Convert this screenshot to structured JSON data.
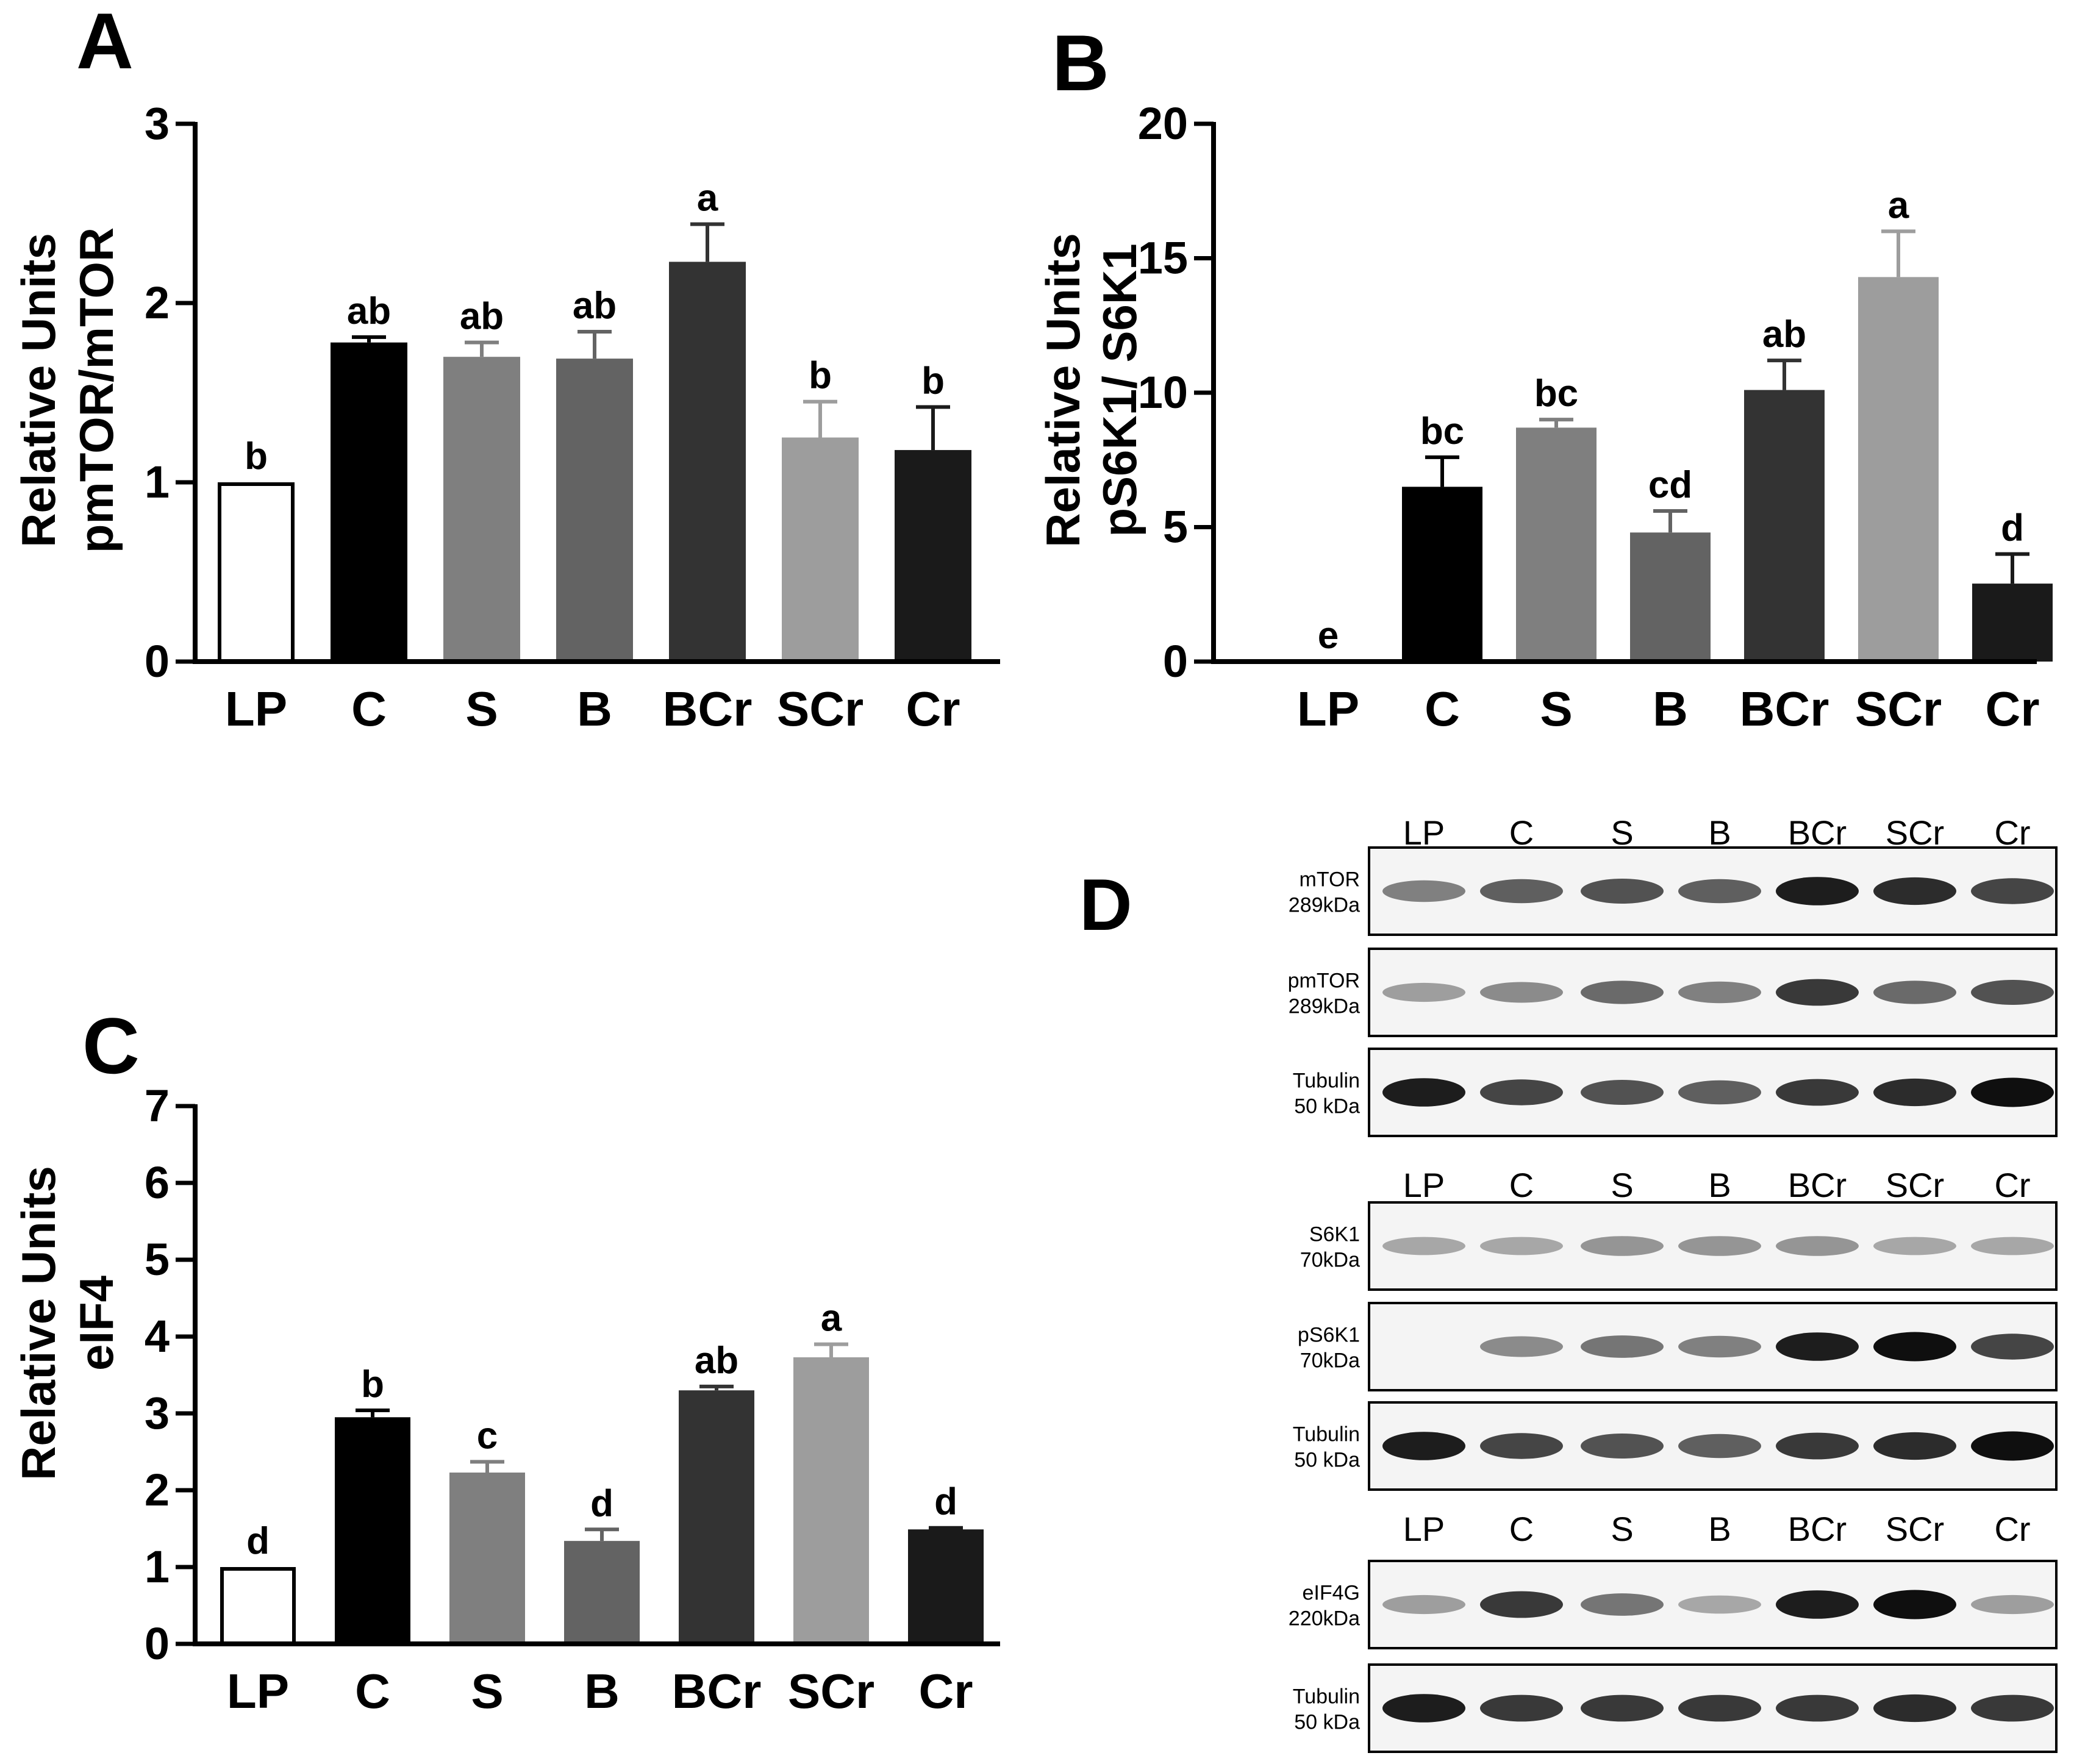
{
  "panel_letters": [
    "A",
    "B",
    "C",
    "D"
  ],
  "chart_data": [
    {
      "panel": "A",
      "type": "bar",
      "ylabel_line1": "Relative Units",
      "ylabel_line2": "pmTOR/mTOR",
      "categories": [
        "LP",
        "C",
        "S",
        "B",
        "BCr",
        "SCr",
        "Cr"
      ],
      "values": [
        1.0,
        1.78,
        1.7,
        1.69,
        2.23,
        1.25,
        1.18
      ],
      "errors": [
        0,
        0.03,
        0.08,
        0.15,
        0.21,
        0.2,
        0.24
      ],
      "sig_letters": [
        "b",
        "ab",
        "ab",
        "ab",
        "a",
        "b",
        "b"
      ],
      "ylim": [
        0,
        3
      ],
      "yticks": [
        0,
        1,
        2,
        3
      ],
      "ytick_labels": [
        "0",
        "1",
        "2",
        "3"
      ],
      "colors": [
        "#ffffff",
        "#000000",
        "#7f7f7f",
        "#636363",
        "#333333",
        "#9d9d9d",
        "#1a1a1a"
      ]
    },
    {
      "panel": "B",
      "type": "bar",
      "ylabel_line1": "Relative Units",
      "ylabel_line2": "pS6K1/ S6K1",
      "categories": [
        "LP",
        "C",
        "S",
        "B",
        "BCr",
        "SCr",
        "Cr"
      ],
      "values": [
        0.0,
        6.5,
        8.7,
        4.8,
        10.1,
        14.3,
        2.9
      ],
      "errors": [
        0,
        1.1,
        0.3,
        0.8,
        1.1,
        1.7,
        1.1
      ],
      "sig_letters": [
        "e",
        "bc",
        "bc",
        "cd",
        "ab",
        "a",
        "d"
      ],
      "ylim": [
        0,
        20
      ],
      "yticks": [
        0,
        5,
        10,
        15,
        20
      ],
      "ytick_labels": [
        "0",
        "5",
        "10",
        "15",
        "20"
      ],
      "colors": [
        "#ffffff",
        "#000000",
        "#7f7f7f",
        "#636363",
        "#333333",
        "#9d9d9d",
        "#1a1a1a"
      ]
    },
    {
      "panel": "C",
      "type": "bar",
      "ylabel_line1": "Relative Units",
      "ylabel_line2": "eIF4",
      "categories": [
        "LP",
        "C",
        "S",
        "B",
        "BCr",
        "SCr",
        "Cr"
      ],
      "values": [
        1.0,
        2.95,
        2.23,
        1.34,
        3.3,
        3.73,
        1.49
      ],
      "errors": [
        0,
        0.09,
        0.14,
        0.15,
        0.05,
        0.17,
        0.02
      ],
      "sig_letters": [
        "d",
        "b",
        "c",
        "d",
        "ab",
        "a",
        "d"
      ],
      "ylim": [
        0,
        7
      ],
      "yticks": [
        0,
        1,
        2,
        3,
        4,
        5,
        6,
        7
      ],
      "ytick_labels": [
        "0",
        "1",
        "2",
        "3",
        "4",
        "5",
        "6",
        "7"
      ],
      "colors": [
        "#ffffff",
        "#000000",
        "#7f7f7f",
        "#636363",
        "#333333",
        "#9d9d9d",
        "#1a1a1a"
      ]
    }
  ],
  "western_blot": {
    "groups": [
      {
        "lane_labels": [
          "LP",
          "C",
          "S",
          "B",
          "BCr",
          "SCr",
          "Cr"
        ],
        "blots": [
          {
            "label_line1": "mTOR",
            "label_line2": "289kDa",
            "band_intensity": [
              0.55,
              0.7,
              0.75,
              0.7,
              0.95,
              0.9,
              0.8
            ]
          },
          {
            "label_line1": "pmTOR",
            "label_line2": "289kDa",
            "band_intensity": [
              0.4,
              0.5,
              0.65,
              0.55,
              0.85,
              0.65,
              0.75
            ]
          },
          {
            "label_line1": "Tubulin",
            "label_line2": "50 kDa",
            "band_intensity": [
              0.95,
              0.8,
              0.75,
              0.7,
              0.85,
              0.9,
              1.0
            ]
          }
        ]
      },
      {
        "lane_labels": [
          "LP",
          "C",
          "S",
          "B",
          "BCr",
          "SCr",
          "Cr"
        ],
        "blots": [
          {
            "label_line1": "S6K1",
            "label_line2": "70kDa",
            "band_intensity": [
              0.35,
              0.35,
              0.45,
              0.45,
              0.45,
              0.35,
              0.35
            ]
          },
          {
            "label_line1": "pS6K1",
            "label_line2": "70kDa",
            "band_intensity": [
              0.0,
              0.5,
              0.6,
              0.55,
              0.95,
              1.0,
              0.8
            ]
          },
          {
            "label_line1": "Tubulin",
            "label_line2": "50 kDa",
            "band_intensity": [
              0.95,
              0.8,
              0.75,
              0.7,
              0.85,
              0.9,
              1.0
            ]
          }
        ]
      },
      {
        "lane_labels": [
          "LP",
          "C",
          "S",
          "B",
          "BCr",
          "SCr",
          "Cr"
        ],
        "blots": [
          {
            "label_line1": "eIF4G",
            "label_line2": "220kDa",
            "band_intensity": [
              0.4,
              0.85,
              0.6,
              0.35,
              0.95,
              1.0,
              0.4
            ]
          },
          {
            "label_line1": "Tubulin",
            "label_line2": "50 kDa",
            "band_intensity": [
              0.95,
              0.85,
              0.85,
              0.85,
              0.85,
              0.9,
              0.85
            ]
          }
        ]
      }
    ]
  }
}
